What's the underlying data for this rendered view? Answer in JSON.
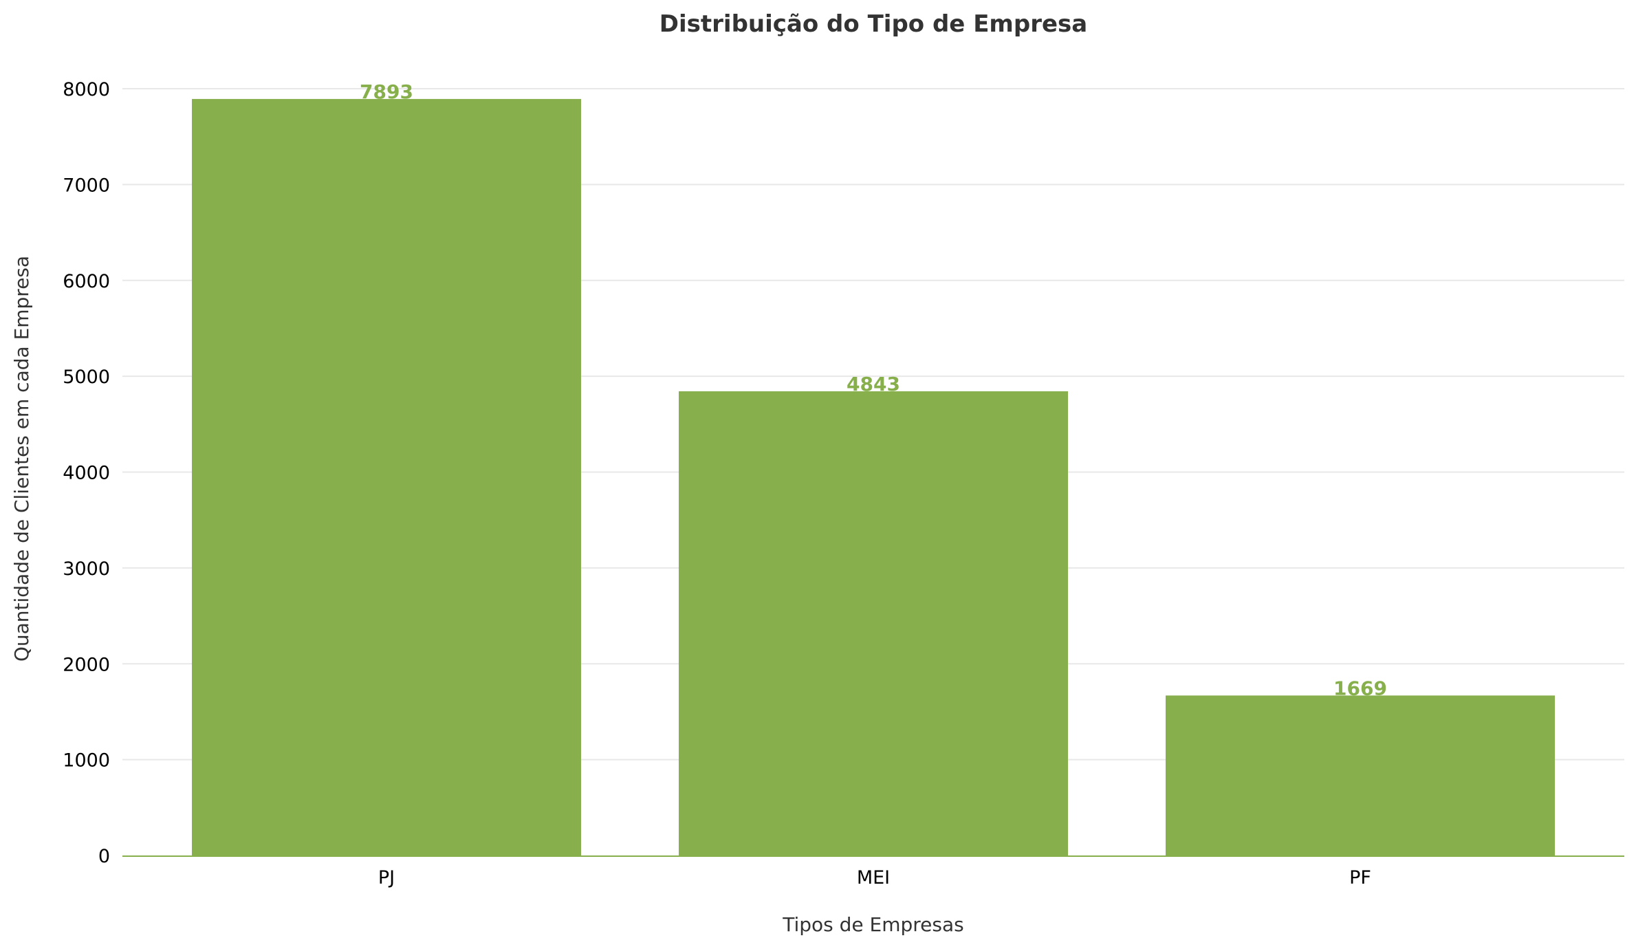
{
  "chart_data": {
    "type": "bar",
    "title": "Distribuição do Tipo de Empresa",
    "xlabel": "Tipos de Empresas",
    "ylabel": "Quantidade de Clientes em cada Empresa",
    "categories": [
      "PJ",
      "MEI",
      "PF"
    ],
    "values": [
      7893,
      4843,
      1669
    ],
    "data_labels": [
      "7893",
      "4843",
      "1669"
    ],
    "yticks": [
      "0",
      "1000",
      "2000",
      "3000",
      "4000",
      "5000",
      "6000",
      "7000",
      "8000"
    ],
    "ylim": [
      0,
      8300
    ],
    "grid": true,
    "legend": "none",
    "colors": {
      "bar": "#87b04c",
      "data_label": "#87b04c",
      "baseline": "#87b04c",
      "grid": "#e8e8e8"
    }
  }
}
